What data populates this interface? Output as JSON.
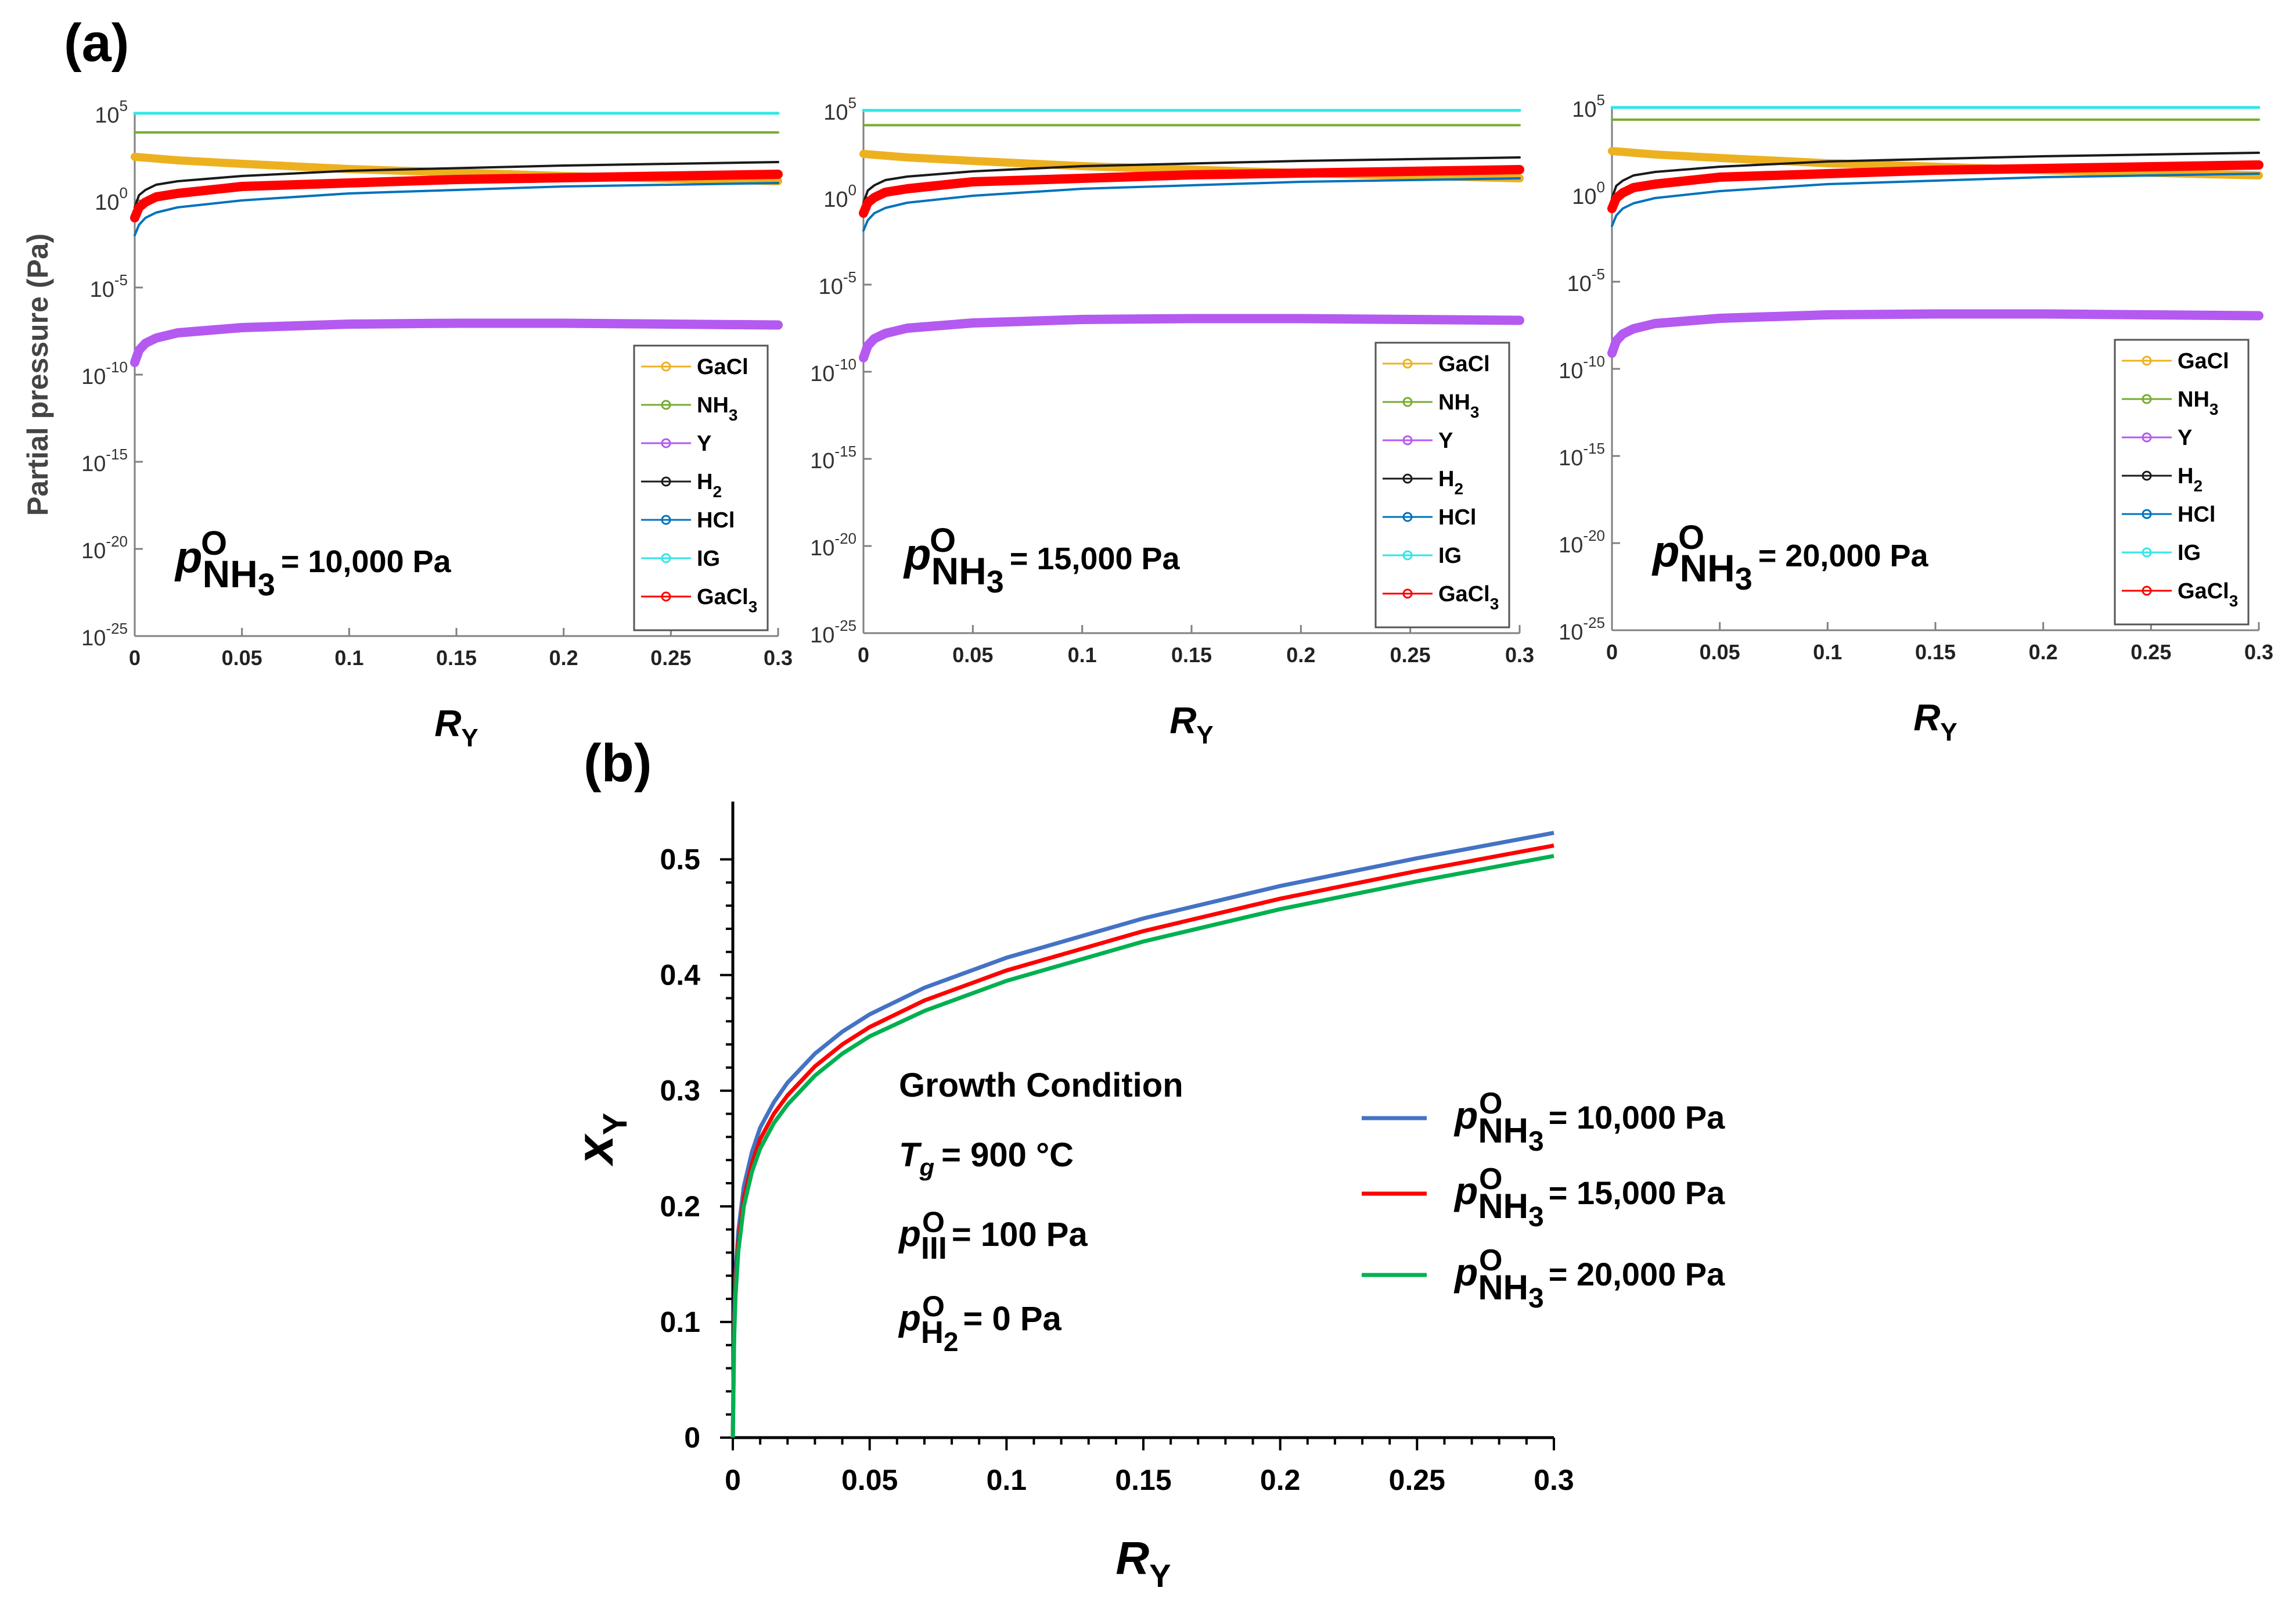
{
  "figure": {
    "panel_a_label": "(a)",
    "panel_b_label": "(b)"
  },
  "colors": {
    "GaCl": "#EDB120",
    "NH3": "#77AC30",
    "Y": "#B45AF0",
    "H2": "#1A1A1A",
    "HCl": "#0072BD",
    "IG": "#33E6E6",
    "GaCl3": "#FF0000",
    "b_blue": "#4472C4",
    "b_red": "#FF0000",
    "b_green": "#00B050"
  },
  "chart_data": [
    {
      "type": "line",
      "panel": "a1",
      "ylabel": "Partial pressure (Pa)",
      "xlabel": {
        "base": "R",
        "sub": "Y"
      },
      "xlim": [
        0,
        0.3
      ],
      "ylim_log10": [
        -25,
        5
      ],
      "yscale": "log",
      "xticks": [
        "0",
        "0.05",
        "0.1",
        "0.15",
        "0.2",
        "0.25",
        "0.3"
      ],
      "yticks": [
        {
          "base": "10",
          "exp": "5"
        },
        {
          "base": "10",
          "exp": "0"
        },
        {
          "base": "10",
          "exp": "-5"
        },
        {
          "base": "10",
          "exp": "-10"
        },
        {
          "base": "10",
          "exp": "-15"
        },
        {
          "base": "10",
          "exp": "-20"
        },
        {
          "base": "10",
          "exp": "-25"
        }
      ],
      "annotation": {
        "p": "p",
        "sup": "O",
        "sub": "NH",
        "sub2": "3",
        "value": "= 10,000 Pa"
      },
      "legend": [
        {
          "base": "GaCl",
          "sub": ""
        },
        {
          "base": "NH",
          "sub": "3"
        },
        {
          "base": "Y",
          "sub": ""
        },
        {
          "base": "H",
          "sub": "2"
        },
        {
          "base": "HCl",
          "sub": ""
        },
        {
          "base": "IG",
          "sub": ""
        },
        {
          "base": "GaCl",
          "sub": "3"
        }
      ],
      "x": [
        0,
        0.002,
        0.005,
        0.01,
        0.02,
        0.05,
        0.1,
        0.15,
        0.2,
        0.25,
        0.3
      ],
      "series": [
        {
          "name": "GaCl",
          "log10_values": [
            2.5,
            2.48,
            2.45,
            2.4,
            2.3,
            2.1,
            1.8,
            1.6,
            1.4,
            1.25,
            1.1
          ]
        },
        {
          "name": "NH3",
          "log10_values": [
            3.9,
            3.9,
            3.9,
            3.9,
            3.9,
            3.9,
            3.9,
            3.9,
            3.9,
            3.9,
            3.9
          ]
        },
        {
          "name": "Y",
          "log10_values": [
            -9.3,
            -8.6,
            -8.2,
            -7.9,
            -7.6,
            -7.3,
            -7.1,
            -7.05,
            -7.05,
            -7.1,
            -7.15
          ]
        },
        {
          "name": "H2",
          "log10_values": [
            -0.4,
            0.3,
            0.6,
            0.9,
            1.1,
            1.4,
            1.7,
            1.85,
            2.0,
            2.1,
            2.2
          ]
        },
        {
          "name": "HCl",
          "log10_values": [
            -2.0,
            -1.4,
            -1.0,
            -0.7,
            -0.4,
            0.0,
            0.4,
            0.6,
            0.8,
            0.9,
            1.0
          ]
        },
        {
          "name": "IG",
          "log10_values": [
            5.0,
            5.0,
            5.0,
            5.0,
            5.0,
            5.0,
            5.0,
            5.0,
            5.0,
            5.0,
            5.0
          ]
        },
        {
          "name": "GaCl3",
          "log10_values": [
            -1.0,
            -0.4,
            -0.1,
            0.2,
            0.4,
            0.8,
            1.0,
            1.2,
            1.3,
            1.4,
            1.5
          ]
        }
      ]
    },
    {
      "type": "line",
      "panel": "a2",
      "ylabel": "",
      "xlabel": {
        "base": "R",
        "sub": "Y"
      },
      "xlim": [
        0,
        0.3
      ],
      "ylim_log10": [
        -25,
        5
      ],
      "yscale": "log",
      "xticks": [
        "0",
        "0.05",
        "0.1",
        "0.15",
        "0.2",
        "0.25",
        "0.3"
      ],
      "yticks": [
        {
          "base": "10",
          "exp": "5"
        },
        {
          "base": "10",
          "exp": "0"
        },
        {
          "base": "10",
          "exp": "-5"
        },
        {
          "base": "10",
          "exp": "-10"
        },
        {
          "base": "10",
          "exp": "-15"
        },
        {
          "base": "10",
          "exp": "-20"
        },
        {
          "base": "10",
          "exp": "-25"
        }
      ],
      "annotation": {
        "p": "p",
        "sup": "O",
        "sub": "NH",
        "sub2": "3",
        "value": "= 15,000 Pa"
      },
      "legend": [
        {
          "base": "GaCl",
          "sub": ""
        },
        {
          "base": "NH",
          "sub": "3"
        },
        {
          "base": "Y",
          "sub": ""
        },
        {
          "base": "H",
          "sub": "2"
        },
        {
          "base": "HCl",
          "sub": ""
        },
        {
          "base": "IG",
          "sub": ""
        },
        {
          "base": "GaCl",
          "sub": "3"
        }
      ],
      "x": [
        0,
        0.002,
        0.005,
        0.01,
        0.02,
        0.05,
        0.1,
        0.15,
        0.2,
        0.25,
        0.3
      ],
      "series": [
        {
          "name": "GaCl",
          "log10_values": [
            2.5,
            2.48,
            2.45,
            2.4,
            2.3,
            2.1,
            1.8,
            1.6,
            1.4,
            1.25,
            1.1
          ]
        },
        {
          "name": "NH3",
          "log10_values": [
            4.15,
            4.15,
            4.15,
            4.15,
            4.15,
            4.15,
            4.15,
            4.15,
            4.15,
            4.15,
            4.15
          ]
        },
        {
          "name": "Y",
          "log10_values": [
            -9.2,
            -8.5,
            -8.1,
            -7.8,
            -7.5,
            -7.2,
            -7.0,
            -6.95,
            -6.95,
            -7.0,
            -7.05
          ]
        },
        {
          "name": "H2",
          "log10_values": [
            -0.3,
            0.4,
            0.7,
            1.0,
            1.2,
            1.5,
            1.8,
            1.95,
            2.1,
            2.2,
            2.3
          ]
        },
        {
          "name": "HCl",
          "log10_values": [
            -1.9,
            -1.3,
            -0.9,
            -0.6,
            -0.3,
            0.1,
            0.5,
            0.7,
            0.9,
            1.0,
            1.1
          ]
        },
        {
          "name": "IG",
          "log10_values": [
            5.0,
            5.0,
            5.0,
            5.0,
            5.0,
            5.0,
            5.0,
            5.0,
            5.0,
            5.0,
            5.0
          ]
        },
        {
          "name": "GaCl3",
          "log10_values": [
            -0.9,
            -0.3,
            0.0,
            0.3,
            0.5,
            0.9,
            1.1,
            1.3,
            1.4,
            1.5,
            1.6
          ]
        }
      ]
    },
    {
      "type": "line",
      "panel": "a3",
      "ylabel": "",
      "xlabel": {
        "base": "R",
        "sub": "Y"
      },
      "xlim": [
        0,
        0.3
      ],
      "ylim_log10": [
        -25,
        5
      ],
      "yscale": "log",
      "xticks": [
        "0",
        "0.05",
        "0.1",
        "0.15",
        "0.2",
        "0.25",
        "0.3"
      ],
      "yticks": [
        {
          "base": "10",
          "exp": "5"
        },
        {
          "base": "10",
          "exp": "0"
        },
        {
          "base": "10",
          "exp": "-5"
        },
        {
          "base": "10",
          "exp": "-10"
        },
        {
          "base": "10",
          "exp": "-15"
        },
        {
          "base": "10",
          "exp": "-20"
        },
        {
          "base": "10",
          "exp": "-25"
        }
      ],
      "annotation": {
        "p": "p",
        "sup": "O",
        "sub": "NH",
        "sub2": "3",
        "value": "= 20,000 Pa"
      },
      "legend": [
        {
          "base": "GaCl",
          "sub": ""
        },
        {
          "base": "NH",
          "sub": "3"
        },
        {
          "base": "Y",
          "sub": ""
        },
        {
          "base": "H",
          "sub": "2"
        },
        {
          "base": "HCl",
          "sub": ""
        },
        {
          "base": "IG",
          "sub": ""
        },
        {
          "base": "GaCl",
          "sub": "3"
        }
      ],
      "x": [
        0,
        0.002,
        0.005,
        0.01,
        0.02,
        0.05,
        0.1,
        0.15,
        0.2,
        0.25,
        0.3
      ],
      "series": [
        {
          "name": "GaCl",
          "log10_values": [
            2.5,
            2.48,
            2.45,
            2.4,
            2.3,
            2.1,
            1.8,
            1.6,
            1.4,
            1.25,
            1.1
          ]
        },
        {
          "name": "NH3",
          "log10_values": [
            4.3,
            4.3,
            4.3,
            4.3,
            4.3,
            4.3,
            4.3,
            4.3,
            4.3,
            4.3,
            4.3
          ]
        },
        {
          "name": "Y",
          "log10_values": [
            -9.1,
            -8.4,
            -8.0,
            -7.7,
            -7.4,
            -7.1,
            -6.9,
            -6.85,
            -6.85,
            -6.9,
            -6.95
          ]
        },
        {
          "name": "H2",
          "log10_values": [
            -0.2,
            0.5,
            0.8,
            1.1,
            1.3,
            1.6,
            1.9,
            2.05,
            2.2,
            2.3,
            2.4
          ]
        },
        {
          "name": "HCl",
          "log10_values": [
            -1.8,
            -1.2,
            -0.8,
            -0.5,
            -0.2,
            0.2,
            0.6,
            0.8,
            1.0,
            1.1,
            1.2
          ]
        },
        {
          "name": "IG",
          "log10_values": [
            5.0,
            5.0,
            5.0,
            5.0,
            5.0,
            5.0,
            5.0,
            5.0,
            5.0,
            5.0,
            5.0
          ]
        },
        {
          "name": "GaCl3",
          "log10_values": [
            -0.8,
            -0.2,
            0.1,
            0.4,
            0.6,
            1.0,
            1.2,
            1.4,
            1.5,
            1.6,
            1.7
          ]
        }
      ]
    },
    {
      "type": "line",
      "panel": "b",
      "xlabel": {
        "base": "R",
        "sub": "Y"
      },
      "ylabel": {
        "base": "x",
        "sub": "Y"
      },
      "xlim": [
        0,
        0.3
      ],
      "ylim": [
        0,
        0.55
      ],
      "xticks": [
        "0",
        "0.05",
        "0.1",
        "0.15",
        "0.2",
        "0.25",
        "0.3"
      ],
      "yticks": [
        "0",
        "0.1",
        "0.2",
        "0.3",
        "0.4",
        "0.5"
      ],
      "annotations": {
        "title": "Growth Condition",
        "tg": {
          "sym": "T",
          "sub": "g",
          "value": "= 900 °C"
        },
        "piii": {
          "sym": "p",
          "sup": "O",
          "sub": "III",
          "value": "= 100 Pa"
        },
        "ph2": {
          "sym": "p",
          "sup": "O",
          "sub": "H",
          "sub2": "2",
          "value": "= 0 Pa"
        }
      },
      "x": [
        0,
        0.0005,
        0.001,
        0.002,
        0.004,
        0.007,
        0.01,
        0.015,
        0.02,
        0.03,
        0.04,
        0.05,
        0.07,
        0.1,
        0.15,
        0.2,
        0.25,
        0.3
      ],
      "series": [
        {
          "name": "10,000 Pa",
          "legend": {
            "p": "p",
            "sup": "O",
            "sub": "NH",
            "sub2": "3",
            "value": "= 10,000 Pa"
          },
          "values": [
            0,
            0.105,
            0.14,
            0.178,
            0.217,
            0.247,
            0.268,
            0.29,
            0.307,
            0.332,
            0.351,
            0.366,
            0.389,
            0.415,
            0.449,
            0.477,
            0.501,
            0.523
          ]
        },
        {
          "name": "15,000 Pa",
          "legend": {
            "p": "p",
            "sup": "O",
            "sub": "NH",
            "sub2": "3",
            "value": "= 15,000 Pa"
          },
          "values": [
            0,
            0.095,
            0.13,
            0.168,
            0.207,
            0.237,
            0.258,
            0.28,
            0.296,
            0.321,
            0.34,
            0.355,
            0.378,
            0.404,
            0.438,
            0.466,
            0.49,
            0.512
          ]
        },
        {
          "name": "20,000 Pa",
          "legend": {
            "p": "p",
            "sup": "O",
            "sub": "NH",
            "sub2": "3",
            "value": "= 20,000 Pa"
          },
          "values": [
            0,
            0.088,
            0.123,
            0.161,
            0.2,
            0.23,
            0.25,
            0.272,
            0.288,
            0.313,
            0.332,
            0.347,
            0.369,
            0.395,
            0.429,
            0.457,
            0.481,
            0.503
          ]
        }
      ]
    }
  ]
}
